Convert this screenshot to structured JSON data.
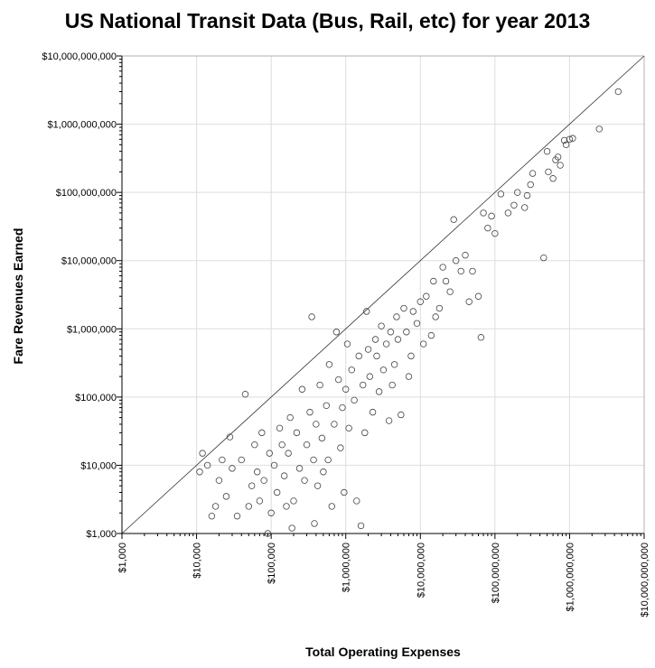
{
  "chart_data": {
    "type": "scatter",
    "title": "US National Transit Data (Bus, Rail, etc) for year 2013",
    "xlabel": "Total Operating Expenses",
    "ylabel": "Fare Revenues Earned",
    "x_scale": "log",
    "y_scale": "log",
    "xlim": [
      1000,
      10000000000
    ],
    "ylim": [
      1000,
      10000000000
    ],
    "x_ticks": [
      "$1,000",
      "$10,000",
      "$100,000",
      "$1,000,000",
      "$10,000,000",
      "$100,000,000",
      "$1,000,000,000",
      "$10,000,000,000"
    ],
    "y_ticks": [
      "$1,000",
      "$10,000",
      "$100,000",
      "$1,000,000",
      "$10,000,000",
      "$100,000,000",
      "$1,000,000,000",
      "$10,000,000,000"
    ],
    "grid": true,
    "reference_line": "y = x",
    "marker": "hollow circle",
    "colors": {
      "points": "#444444",
      "grid": "#dddddd",
      "axis": "#000000",
      "line": "#333333"
    },
    "points": [
      [
        4500000000,
        3000000000
      ],
      [
        2500000000,
        850000000
      ],
      [
        1100000000,
        620000000
      ],
      [
        1000000000,
        600000000
      ],
      [
        900000000,
        500000000
      ],
      [
        850000000,
        580000000
      ],
      [
        700000000,
        330000000
      ],
      [
        650000000,
        300000000
      ],
      [
        750000000,
        250000000
      ],
      [
        500000000,
        400000000
      ],
      [
        520000000,
        200000000
      ],
      [
        600000000,
        160000000
      ],
      [
        450000000,
        11000000
      ],
      [
        320000000,
        190000000
      ],
      [
        300000000,
        130000000
      ],
      [
        270000000,
        90000000
      ],
      [
        200000000,
        100000000
      ],
      [
        180000000,
        65000000
      ],
      [
        250000000,
        60000000
      ],
      [
        150000000,
        50000000
      ],
      [
        120000000,
        95000000
      ],
      [
        100000000,
        25000000
      ],
      [
        90000000,
        45000000
      ],
      [
        80000000,
        30000000
      ],
      [
        70000000,
        50000000
      ],
      [
        60000000,
        3000000
      ],
      [
        65000000,
        750000
      ],
      [
        50000000,
        7000000
      ],
      [
        45000000,
        2500000
      ],
      [
        40000000,
        12000000
      ],
      [
        35000000,
        7000000
      ],
      [
        30000000,
        10000000
      ],
      [
        28000000,
        40000000
      ],
      [
        25000000,
        3500000
      ],
      [
        22000000,
        5000000
      ],
      [
        20000000,
        8000000
      ],
      [
        18000000,
        2000000
      ],
      [
        16000000,
        1500000
      ],
      [
        15000000,
        5000000
      ],
      [
        14000000,
        800000
      ],
      [
        12000000,
        3000000
      ],
      [
        11000000,
        600000
      ],
      [
        10000000,
        2500000
      ],
      [
        9000000,
        1200000
      ],
      [
        8000000,
        1800000
      ],
      [
        7500000,
        400000
      ],
      [
        7000000,
        200000
      ],
      [
        6500000,
        900000
      ],
      [
        6000000,
        2000000
      ],
      [
        5500000,
        55000
      ],
      [
        5000000,
        700000
      ],
      [
        4800000,
        1500000
      ],
      [
        4500000,
        300000
      ],
      [
        4200000,
        150000
      ],
      [
        4000000,
        900000
      ],
      [
        3800000,
        45000
      ],
      [
        3500000,
        600000
      ],
      [
        3200000,
        250000
      ],
      [
        3000000,
        1100000
      ],
      [
        2800000,
        120000
      ],
      [
        2600000,
        400000
      ],
      [
        2500000,
        700000
      ],
      [
        2300000,
        60000
      ],
      [
        2100000,
        200000
      ],
      [
        2000000,
        500000
      ],
      [
        1900000,
        1800000
      ],
      [
        1800000,
        30000
      ],
      [
        1700000,
        150000
      ],
      [
        1600000,
        1300
      ],
      [
        1500000,
        400000
      ],
      [
        1400000,
        3000
      ],
      [
        1300000,
        90000
      ],
      [
        1200000,
        250000
      ],
      [
        1100000,
        35000
      ],
      [
        1050000,
        600000
      ],
      [
        1000000,
        130000
      ],
      [
        950000,
        4000
      ],
      [
        900000,
        70000
      ],
      [
        850000,
        18000
      ],
      [
        800000,
        180000
      ],
      [
        750000,
        900000
      ],
      [
        700000,
        40000
      ],
      [
        650000,
        2500
      ],
      [
        600000,
        300000
      ],
      [
        580000,
        12000
      ],
      [
        550000,
        75000
      ],
      [
        500000,
        8000
      ],
      [
        480000,
        25000
      ],
      [
        450000,
        150000
      ],
      [
        420000,
        5000
      ],
      [
        400000,
        40000
      ],
      [
        380000,
        1400
      ],
      [
        370000,
        12000
      ],
      [
        350000,
        1500000
      ],
      [
        330000,
        60000
      ],
      [
        300000,
        20000
      ],
      [
        280000,
        6000
      ],
      [
        260000,
        130000
      ],
      [
        240000,
        9000
      ],
      [
        220000,
        30000
      ],
      [
        200000,
        3000
      ],
      [
        190000,
        1200
      ],
      [
        180000,
        50000
      ],
      [
        170000,
        15000
      ],
      [
        160000,
        2500
      ],
      [
        150000,
        7000
      ],
      [
        140000,
        20000
      ],
      [
        130000,
        35000
      ],
      [
        120000,
        4000
      ],
      [
        110000,
        10000
      ],
      [
        100000,
        2000
      ],
      [
        95000,
        15000
      ],
      [
        90000,
        1000
      ],
      [
        80000,
        6000
      ],
      [
        75000,
        30000
      ],
      [
        70000,
        3000
      ],
      [
        65000,
        8000
      ],
      [
        60000,
        20000
      ],
      [
        55000,
        5000
      ],
      [
        50000,
        2500
      ],
      [
        45000,
        110000
      ],
      [
        40000,
        12000
      ],
      [
        35000,
        1800
      ],
      [
        30000,
        9000
      ],
      [
        25000,
        3500
      ],
      [
        20000,
        6000
      ],
      [
        18000,
        2500
      ],
      [
        16000,
        1800
      ],
      [
        14000,
        10000
      ],
      [
        12000,
        15000
      ],
      [
        11000,
        8000
      ],
      [
        22000,
        12000
      ],
      [
        28000,
        26000
      ]
    ]
  }
}
